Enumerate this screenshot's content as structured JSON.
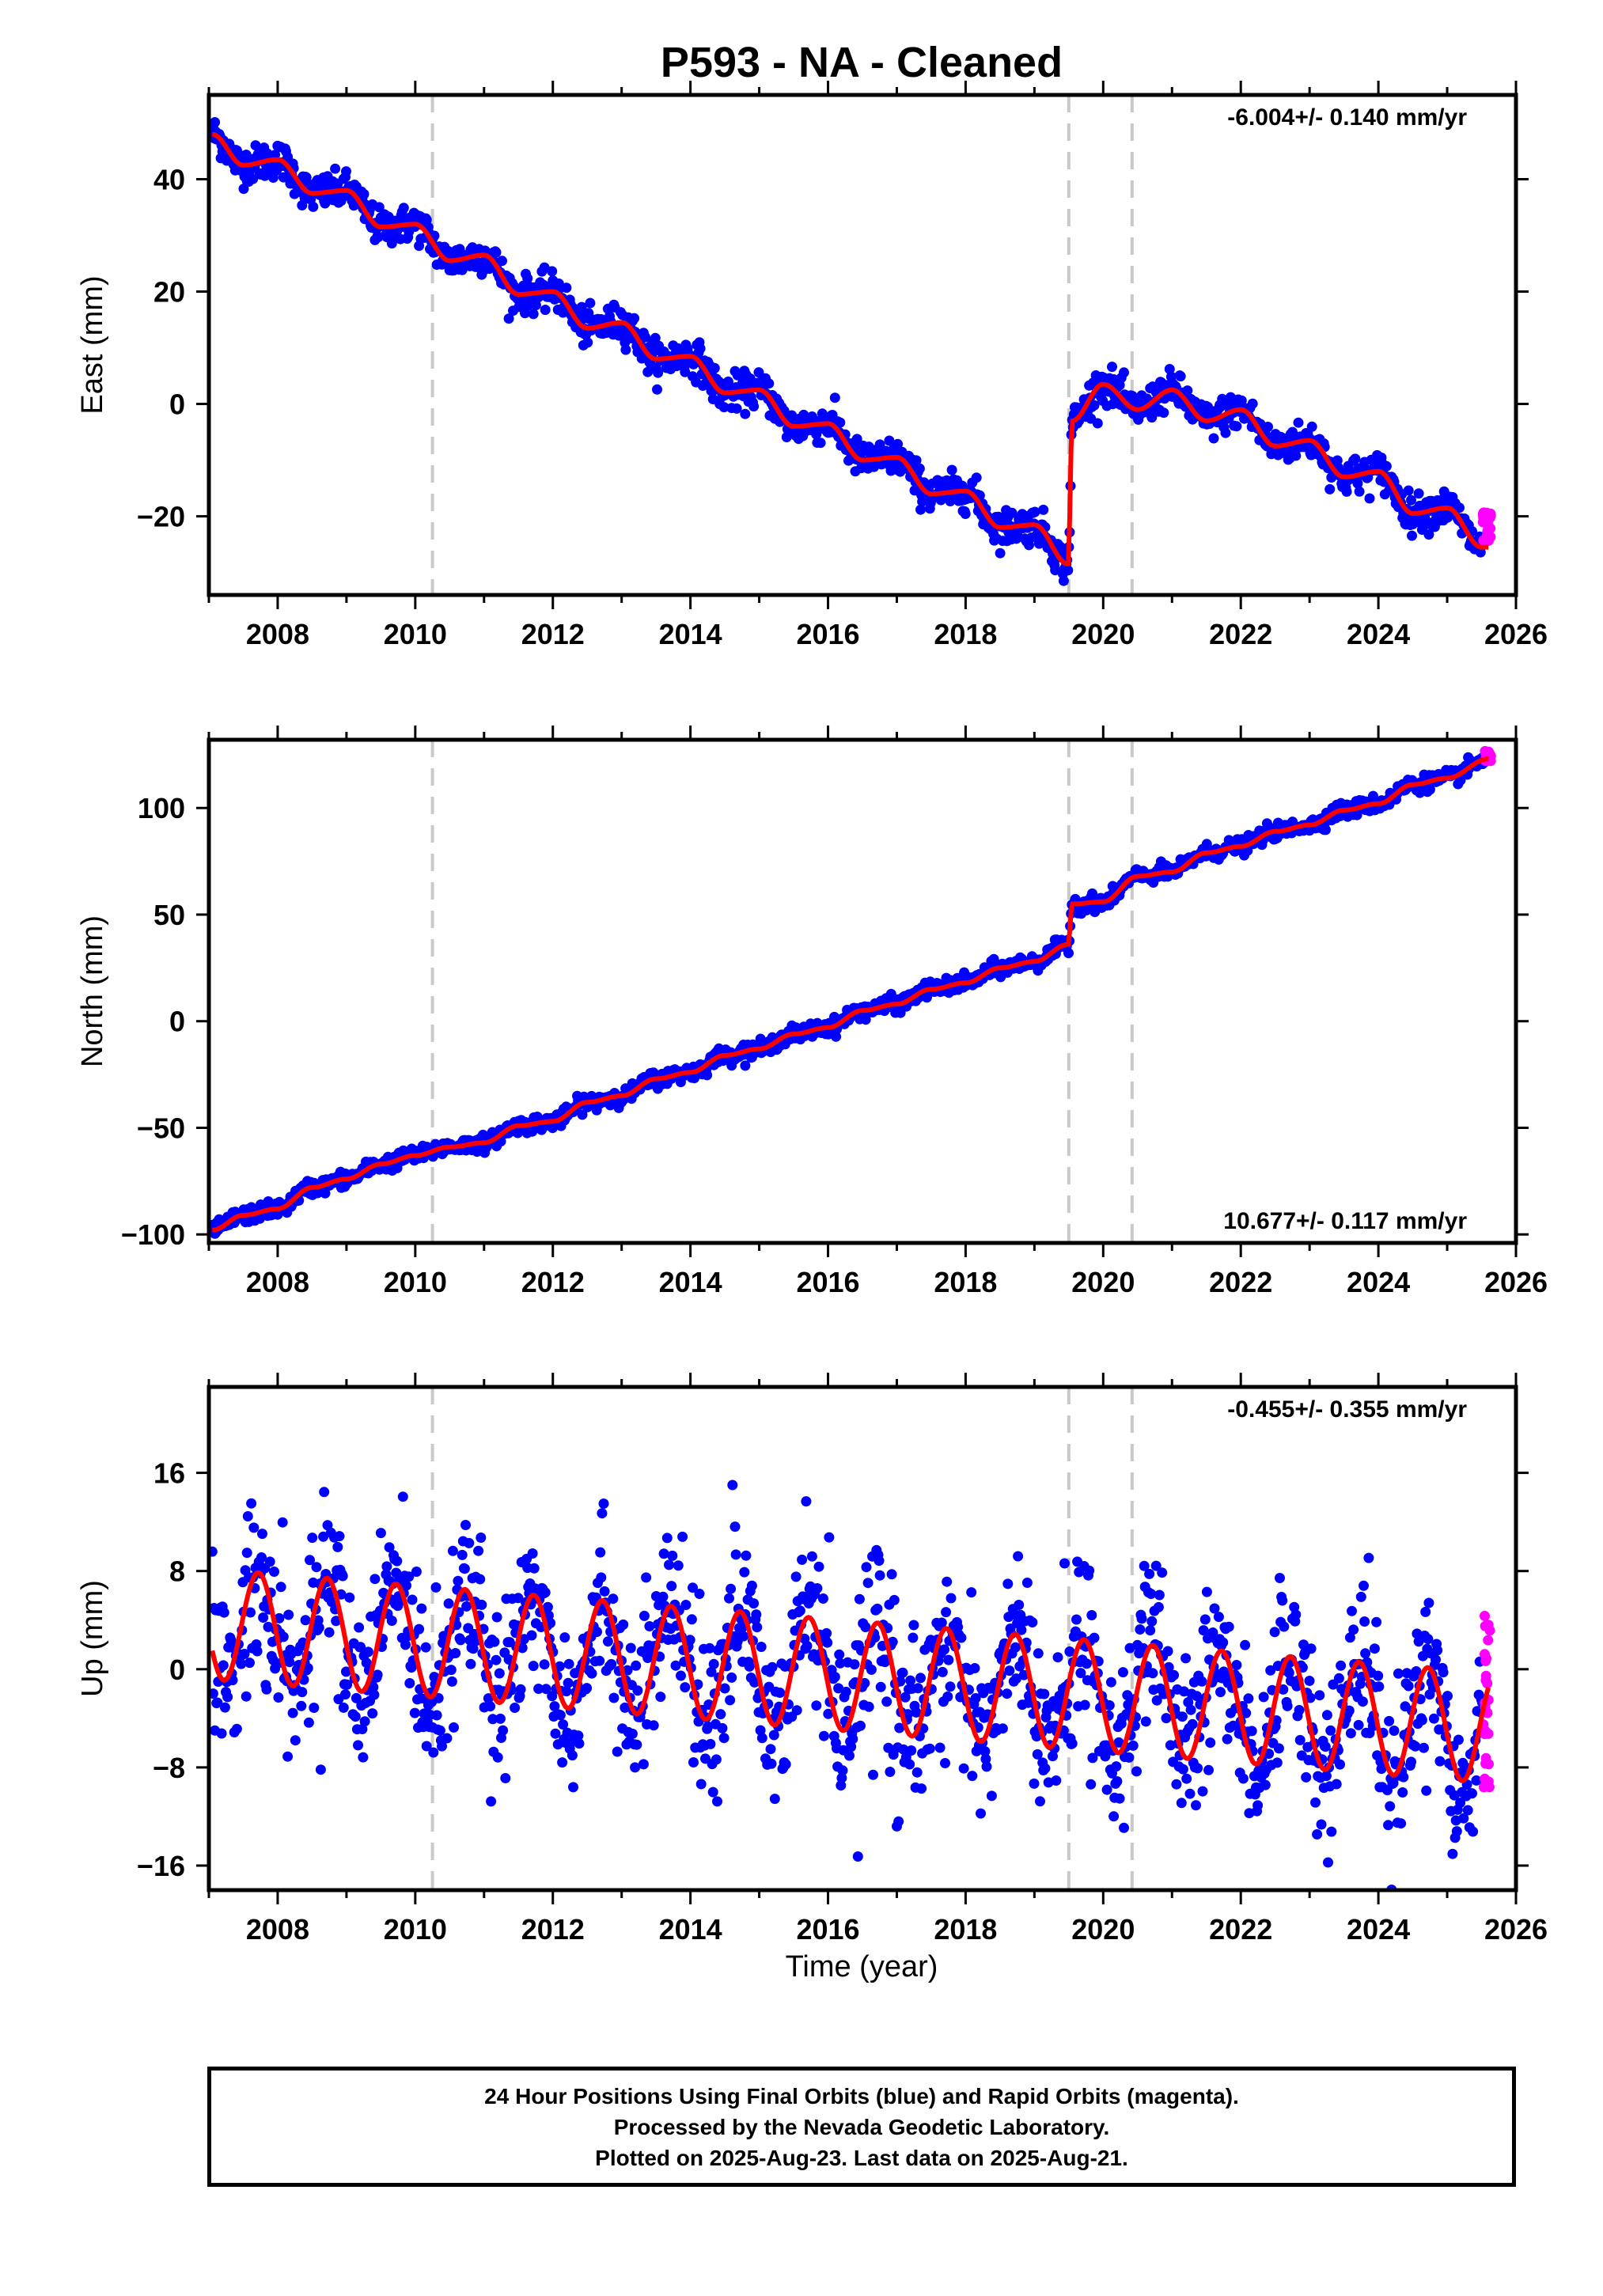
{
  "title": "P593  - NA - Cleaned",
  "xlabel": "Time (year)",
  "footer": {
    "line1": "24 Hour Positions Using Final Orbits (blue) and Rapid Orbits (magenta).",
    "line2": "Processed by the Nevada Geodetic Laboratory.",
    "line3": "Plotted on 2025-Aug-23. Last data on 2025-Aug-21."
  },
  "colors": {
    "final_orbits": "#0000ff",
    "rapid_orbits": "#ff00ff",
    "model_fit": "#ff0000",
    "event_lines": "#c8c8c8"
  },
  "chart_data": [
    {
      "type": "scatter",
      "component": "East",
      "ylabel": "East (mm)",
      "rate": "-6.004+/- 0.140 mm/yr",
      "rate_position": "top-right",
      "xlim": [
        2007.0,
        2026.0
      ],
      "ylim": [
        -34,
        55
      ],
      "xticks": [
        2008,
        2010,
        2012,
        2014,
        2016,
        2018,
        2020,
        2022,
        2024,
        2026
      ],
      "yticks": [
        -20,
        0,
        20,
        40
      ],
      "ytick_labels": [
        "−20",
        "0",
        "20",
        "40"
      ],
      "event_lines": [
        2010.25,
        2019.5,
        2020.42
      ],
      "series": [
        {
          "name": "Final Orbits",
          "color": "#0000ff",
          "fit_x": [
            2007.05,
            2007.5,
            2008.0,
            2008.5,
            2009.0,
            2009.5,
            2010.0,
            2010.5,
            2011.0,
            2011.5,
            2012.0,
            2012.5,
            2013.0,
            2013.5,
            2014.0,
            2014.5,
            2015.0,
            2015.5,
            2016.0,
            2016.5,
            2017.0,
            2017.5,
            2018.0,
            2018.5,
            2019.0,
            2019.49,
            2019.55,
            2020.0,
            2020.5,
            2021.0,
            2021.5,
            2022.0,
            2022.5,
            2023.0,
            2023.5,
            2024.0,
            2024.5,
            2025.0,
            2025.5
          ],
          "fit_y": [
            48,
            42.5,
            43.5,
            37.5,
            38,
            31.5,
            32,
            25.5,
            26.5,
            19.5,
            20,
            13.5,
            14.5,
            8,
            8.5,
            2,
            2.5,
            -4,
            -3.5,
            -10,
            -9.5,
            -16,
            -15.5,
            -22,
            -21.5,
            -28.5,
            -3,
            3.5,
            -1,
            2.5,
            -3,
            -1,
            -7.5,
            -6.5,
            -13,
            -12,
            -19.5,
            -18.5,
            -25.5
          ],
          "noise_mm": 1.6
        },
        {
          "name": "Rapid Orbits",
          "color": "#ff00ff",
          "x_range": [
            2025.52,
            2025.64
          ],
          "y_range": [
            -25,
            -19
          ]
        }
      ]
    },
    {
      "type": "scatter",
      "component": "North",
      "ylabel": "North (mm)",
      "rate": "10.677+/- 0.117 mm/yr",
      "rate_position": "bottom-right",
      "xlim": [
        2007.0,
        2026.0
      ],
      "ylim": [
        -104,
        132
      ],
      "xticks": [
        2008,
        2010,
        2012,
        2014,
        2016,
        2018,
        2020,
        2022,
        2024,
        2026
      ],
      "yticks": [
        -100,
        -50,
        0,
        50,
        100
      ],
      "ytick_labels": [
        "−100",
        "−50",
        "0",
        "50",
        "100"
      ],
      "event_lines": [
        2010.25,
        2019.5,
        2020.42
      ],
      "series": [
        {
          "name": "Final Orbits",
          "color": "#0000ff",
          "fit_x": [
            2007.05,
            2007.5,
            2008.0,
            2008.5,
            2009.0,
            2009.5,
            2010.0,
            2010.5,
            2011.0,
            2011.5,
            2012.0,
            2012.5,
            2013.0,
            2013.5,
            2014.0,
            2014.5,
            2015.0,
            2015.5,
            2016.0,
            2016.5,
            2017.0,
            2017.5,
            2018.0,
            2018.5,
            2019.0,
            2019.49,
            2019.55,
            2020.0,
            2020.5,
            2021.0,
            2021.5,
            2022.0,
            2022.5,
            2023.0,
            2023.5,
            2024.0,
            2024.5,
            2025.0,
            2025.6
          ],
          "fit_y": [
            -98,
            -91,
            -88,
            -78,
            -74,
            -67,
            -63,
            -59,
            -57,
            -49,
            -47,
            -38,
            -35,
            -27,
            -24,
            -16,
            -13,
            -6,
            -3,
            5,
            8,
            15,
            18,
            25,
            28,
            36,
            55,
            56,
            68,
            70,
            79,
            82,
            89,
            92,
            99,
            102,
            111,
            114,
            123
          ],
          "noise_mm": 1.8
        },
        {
          "name": "Rapid Orbits",
          "color": "#ff00ff",
          "x_range": [
            2025.55,
            2025.64
          ],
          "y_range": [
            122,
            127
          ]
        }
      ]
    },
    {
      "type": "scatter",
      "component": "Up",
      "ylabel": "Up (mm)",
      "rate": "-0.455+/- 0.355 mm/yr",
      "rate_position": "top-right",
      "xlim": [
        2007.0,
        2026.0
      ],
      "ylim": [
        -18,
        23
      ],
      "xticks": [
        2008,
        2010,
        2012,
        2014,
        2016,
        2018,
        2020,
        2022,
        2024,
        2026
      ],
      "yticks": [
        -16,
        -8,
        0,
        8,
        16
      ],
      "ytick_labels": [
        "−16",
        "−8",
        "0",
        "8",
        "16"
      ],
      "event_lines": [
        2010.25,
        2019.5,
        2020.42
      ],
      "series": [
        {
          "name": "Final Orbits",
          "color": "#0000ff",
          "model": "seasonal",
          "annual_amplitude_mm": 4.5,
          "annual_peak_phase_yr": 0.72,
          "offset_at_2007_mm": 3.4,
          "trend_mm_per_yr": -0.455,
          "noise_mm": 3.2
        },
        {
          "name": "Rapid Orbits",
          "color": "#ff00ff",
          "x_range": [
            2025.52,
            2025.64
          ],
          "y_range": [
            -10,
            6.5
          ]
        }
      ]
    }
  ]
}
